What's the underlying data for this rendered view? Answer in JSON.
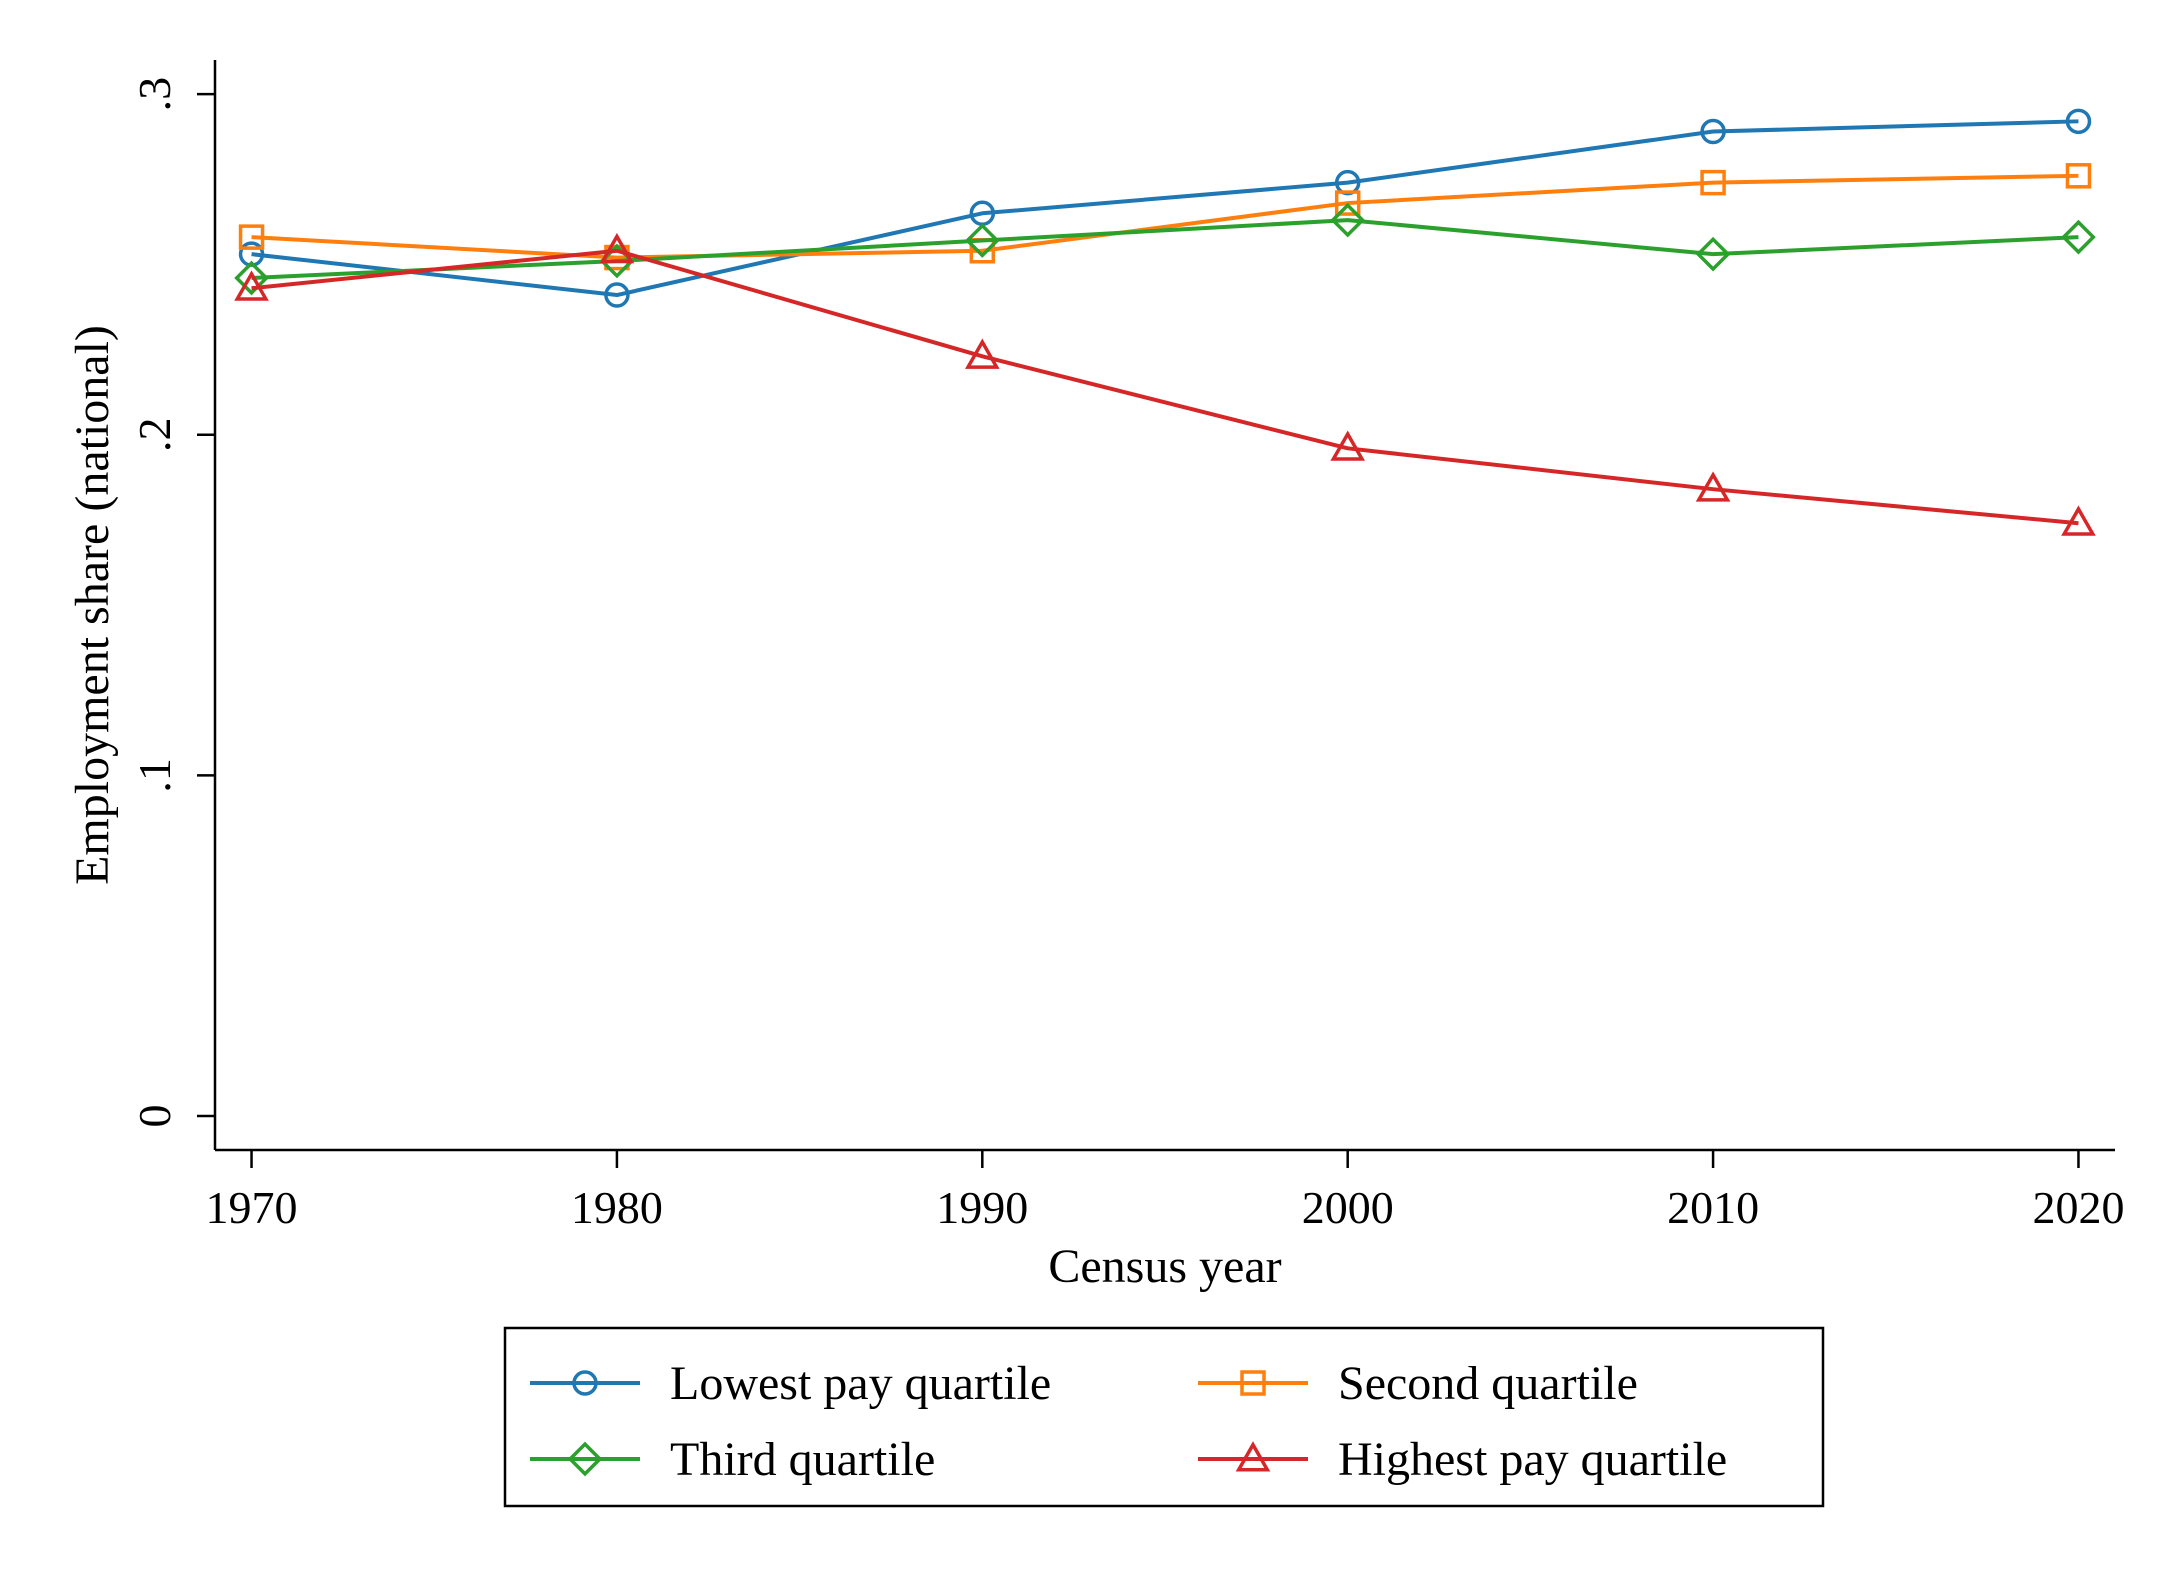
{
  "chart_data": {
    "type": "line",
    "title": "",
    "xlabel": "Census year",
    "ylabel": "Employment share (national)",
    "x": [
      1970,
      1980,
      1990,
      2000,
      2010,
      2020
    ],
    "xlim": [
      1969,
      2021
    ],
    "ylim": [
      -0.01,
      0.31
    ],
    "x_ticks": [
      1970,
      1980,
      1990,
      2000,
      2010,
      2020
    ],
    "x_tick_labels": [
      "1970",
      "1980",
      "1990",
      "2000",
      "2010",
      "2020"
    ],
    "y_ticks": [
      0,
      0.1,
      0.2,
      0.3
    ],
    "y_tick_labels": [
      "0",
      ".1",
      ".2",
      ".3"
    ],
    "grid": false,
    "legend_position": "bottom",
    "series": [
      {
        "name": "Lowest pay quartile",
        "color": "#1f77b4",
        "marker": "circle",
        "values": [
          0.253,
          0.241,
          0.265,
          0.274,
          0.289,
          0.292
        ]
      },
      {
        "name": "Second quartile",
        "color": "#ff7f0e",
        "marker": "square",
        "values": [
          0.258,
          0.252,
          0.254,
          0.268,
          0.274,
          0.276
        ]
      },
      {
        "name": "Third quartile",
        "color": "#2ca02c",
        "marker": "diamond",
        "values": [
          0.246,
          0.251,
          0.257,
          0.263,
          0.253,
          0.258
        ]
      },
      {
        "name": "Highest pay quartile",
        "color": "#d62728",
        "marker": "triangle",
        "values": [
          0.243,
          0.254,
          0.223,
          0.196,
          0.184,
          0.174
        ]
      }
    ]
  }
}
